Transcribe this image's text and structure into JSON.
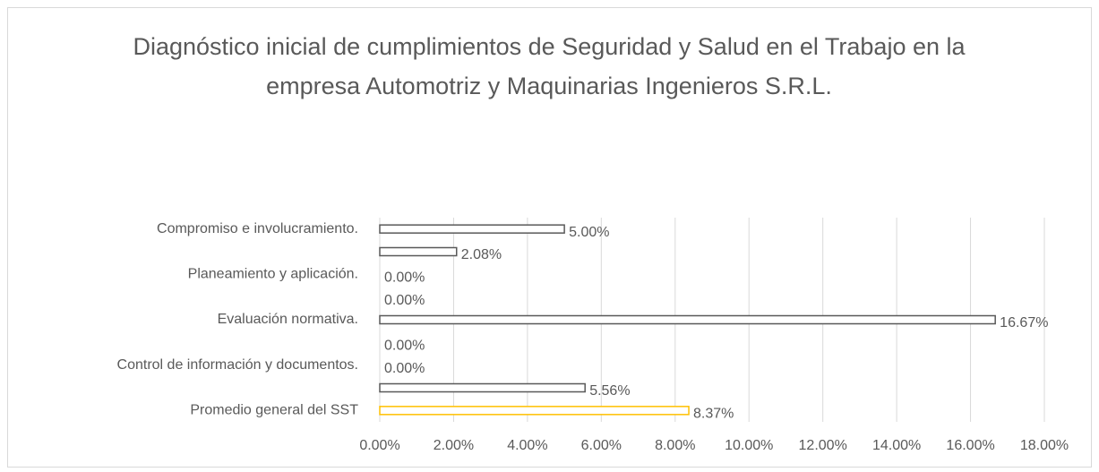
{
  "chart_data": {
    "type": "hbar",
    "title": "Diagnóstico inicial de cumplimientos de Seguridad y Salud en el Trabajo en la empresa Automotriz y Maquinarias Ingenieros S.R.L.",
    "categories": [
      "Compromiso e involucramiento.",
      null,
      "Planeamiento y aplicación.",
      null,
      "Evaluación normativa.",
      null,
      "Control de información y documentos.",
      null,
      "Promedio general del SST"
    ],
    "values": [
      5.0,
      2.08,
      0.0,
      0.0,
      16.67,
      0.0,
      0.0,
      5.56,
      8.37
    ],
    "value_labels": [
      "5.00%",
      "2.08%",
      "0.00%",
      "0.00%",
      "16.67%",
      "0.00%",
      "0.00%",
      "5.56%",
      "8.37%"
    ],
    "colors": [
      "#595959",
      "#595959",
      "#595959",
      "#595959",
      "#595959",
      "#595959",
      "#595959",
      "#595959",
      "#ffc000"
    ],
    "xlim": [
      0,
      18
    ],
    "xticks": [
      {
        "value": 0,
        "label": "0.00%"
      },
      {
        "value": 2,
        "label": "2.00%"
      },
      {
        "value": 4,
        "label": "4.00%"
      },
      {
        "value": 6,
        "label": "6.00%"
      },
      {
        "value": 8,
        "label": "8.00%"
      },
      {
        "value": 10,
        "label": "10.00%"
      },
      {
        "value": 12,
        "label": "12.00%"
      },
      {
        "value": 14,
        "label": "14.00%"
      },
      {
        "value": 16,
        "label": "16.00%"
      },
      {
        "value": 18,
        "label": "18.00%"
      }
    ],
    "grid": true
  }
}
